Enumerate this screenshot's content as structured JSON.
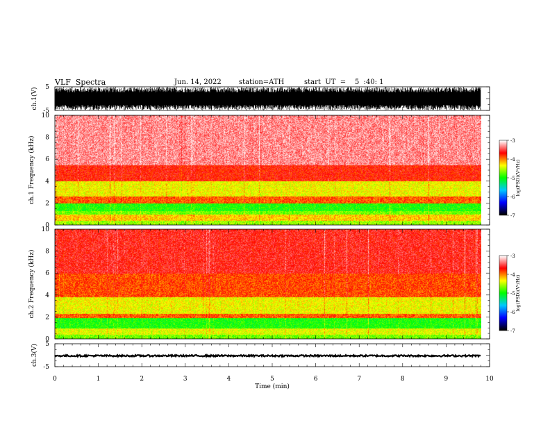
{
  "header": {
    "title": "VLF  Spectra",
    "date": "Jun. 14, 2022",
    "station": "station=ATH",
    "start": "start  UT  =    5  :40: 1"
  },
  "chart_data": [
    {
      "type": "line",
      "panel": "ch1-waveform",
      "ylabel": "ch.1(V)",
      "ylim": [
        -5,
        5
      ],
      "yticks": [
        "5",
        "-5"
      ],
      "xlim": [
        0,
        10
      ],
      "x": [
        0,
        9.8
      ],
      "y_envelope": [
        -4.8,
        4.8
      ],
      "color": "#000000"
    },
    {
      "type": "heatmap",
      "panel": "ch1-spectrogram",
      "ylabel": "ch.1\nFrequency  (kHz)",
      "ylim": [
        0,
        10
      ],
      "yticks": [
        "0",
        "2",
        "4",
        "6",
        "8",
        "10"
      ],
      "xlim": [
        0,
        10
      ],
      "x_extent": [
        0,
        9.8
      ],
      "bands": [
        {
          "from": 0.0,
          "to": 0.4,
          "level": -4.6
        },
        {
          "from": 0.4,
          "to": 1.0,
          "level": -4.2
        },
        {
          "from": 1.0,
          "to": 1.3,
          "level": -4.7
        },
        {
          "from": 1.3,
          "to": 2.0,
          "level": -4.95
        },
        {
          "from": 2.0,
          "to": 2.6,
          "level": -3.9
        },
        {
          "from": 2.6,
          "to": 4.0,
          "level": -4.35
        },
        {
          "from": 4.0,
          "to": 5.5,
          "level": -3.7
        },
        {
          "from": 5.5,
          "to": 10.0,
          "level": -3.3
        }
      ],
      "colorbar": {
        "label": "log(PSD)(V²/Hz)",
        "range": [
          -7,
          -3
        ],
        "ticks": [
          "-3",
          "-4",
          "-5",
          "-6",
          "-7"
        ],
        "colors": [
          "#000000",
          "#0000ff",
          "#00c8ff",
          "#00ff00",
          "#ffff00",
          "#ff0000",
          "#ffffff"
        ]
      }
    },
    {
      "type": "heatmap",
      "panel": "ch2-spectrogram",
      "ylabel": "ch.2\nFrequency  (kHz)",
      "ylim": [
        0,
        10
      ],
      "yticks": [
        "0",
        "2",
        "4",
        "6",
        "8",
        "10"
      ],
      "xlim": [
        0,
        10
      ],
      "x_extent": [
        0,
        9.8
      ],
      "bands": [
        {
          "from": 0.0,
          "to": 0.4,
          "level": -4.7
        },
        {
          "from": 0.4,
          "to": 1.0,
          "level": -4.4
        },
        {
          "from": 1.0,
          "to": 1.9,
          "level": -4.95
        },
        {
          "from": 1.9,
          "to": 2.3,
          "level": -3.9
        },
        {
          "from": 2.3,
          "to": 3.8,
          "level": -4.35
        },
        {
          "from": 3.8,
          "to": 6.0,
          "level": -3.85
        },
        {
          "from": 6.0,
          "to": 10.0,
          "level": -3.6
        }
      ],
      "colorbar": {
        "label": "log(PSD)(V²/Hz)",
        "range": [
          -7,
          -3
        ],
        "ticks": [
          "-3",
          "-4",
          "-5",
          "-6",
          "-7"
        ],
        "colors": [
          "#000000",
          "#0000ff",
          "#00c8ff",
          "#00ff00",
          "#ffff00",
          "#ff0000",
          "#ffffff"
        ]
      }
    },
    {
      "type": "line",
      "panel": "ch3-waveform",
      "ylabel": "ch.3(V)",
      "ylim": [
        -5,
        5
      ],
      "yticks": [
        "5",
        "-5"
      ],
      "xlim": [
        0,
        10
      ],
      "x": [
        0,
        9.8
      ],
      "y_envelope": [
        -0.6,
        0.1
      ],
      "xlabel": "Time  (min)",
      "xticks": [
        "0",
        "1",
        "2",
        "3",
        "4",
        "5",
        "6",
        "7",
        "8",
        "9",
        "10"
      ],
      "color": "#000000"
    }
  ]
}
